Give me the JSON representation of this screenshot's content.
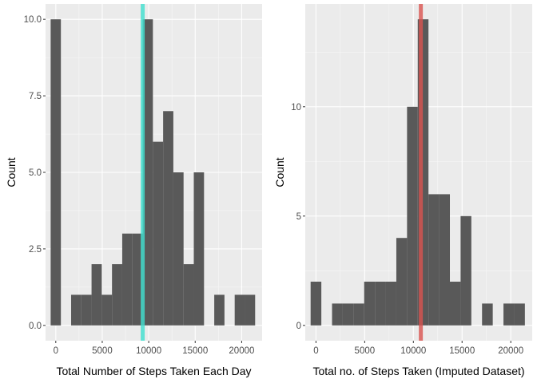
{
  "chart_data": [
    {
      "type": "bar",
      "subtype": "histogram",
      "xlabel": "Total Number of Steps Taken Each Day",
      "ylabel": "Count",
      "xlim": [
        -1100,
        22200
      ],
      "ylim": [
        -0.5,
        10.5
      ],
      "x_ticks": [
        0,
        5000,
        10000,
        15000,
        20000
      ],
      "x_tick_labels": [
        "0",
        "5000",
        "10000",
        "15000",
        "20000"
      ],
      "y_ticks": [
        0,
        2.5,
        5,
        7.5,
        10
      ],
      "y_tick_labels": [
        "0.0",
        "2.5",
        "5.0",
        "7.5",
        "10.0"
      ],
      "bin_width": 1100,
      "bins": [
        {
          "x": 0,
          "count": 10
        },
        {
          "x": 1100,
          "count": 0
        },
        {
          "x": 2200,
          "count": 1
        },
        {
          "x": 3300,
          "count": 1
        },
        {
          "x": 4400,
          "count": 2
        },
        {
          "x": 5500,
          "count": 1
        },
        {
          "x": 6600,
          "count": 2
        },
        {
          "x": 7700,
          "count": 3
        },
        {
          "x": 8800,
          "count": 3
        },
        {
          "x": 9900,
          "count": 10
        },
        {
          "x": 11000,
          "count": 6
        },
        {
          "x": 12100,
          "count": 7
        },
        {
          "x": 13200,
          "count": 5
        },
        {
          "x": 14300,
          "count": 2
        },
        {
          "x": 15400,
          "count": 5
        },
        {
          "x": 16500,
          "count": 0
        },
        {
          "x": 17600,
          "count": 1
        },
        {
          "x": 18700,
          "count": 0
        },
        {
          "x": 19800,
          "count": 1
        },
        {
          "x": 20900,
          "count": 1
        }
      ],
      "vline": {
        "x": 9354,
        "color": "#40e0d0"
      },
      "bar_color": "#595959",
      "panel_bg": "#ebebeb",
      "grid": true
    },
    {
      "type": "bar",
      "subtype": "histogram",
      "xlabel": "Total no. of Steps Taken (Imputed Dataset)",
      "ylabel": "Count",
      "xlim": [
        -1100,
        22200
      ],
      "ylim": [
        -0.7,
        14.7
      ],
      "x_ticks": [
        0,
        5000,
        10000,
        15000,
        20000
      ],
      "x_tick_labels": [
        "0",
        "5000",
        "10000",
        "15000",
        "20000"
      ],
      "y_ticks": [
        0,
        5,
        10
      ],
      "y_tick_labels": [
        "0",
        "5",
        "10"
      ],
      "bin_width": 1100,
      "bins": [
        {
          "x": 0,
          "count": 2
        },
        {
          "x": 1100,
          "count": 0
        },
        {
          "x": 2200,
          "count": 1
        },
        {
          "x": 3300,
          "count": 1
        },
        {
          "x": 4400,
          "count": 1
        },
        {
          "x": 5500,
          "count": 2
        },
        {
          "x": 6600,
          "count": 2
        },
        {
          "x": 7700,
          "count": 2
        },
        {
          "x": 8800,
          "count": 4
        },
        {
          "x": 9900,
          "count": 10
        },
        {
          "x": 11000,
          "count": 14
        },
        {
          "x": 12100,
          "count": 6
        },
        {
          "x": 13200,
          "count": 6
        },
        {
          "x": 14300,
          "count": 2
        },
        {
          "x": 15400,
          "count": 5
        },
        {
          "x": 16500,
          "count": 0
        },
        {
          "x": 17600,
          "count": 1
        },
        {
          "x": 18700,
          "count": 0
        },
        {
          "x": 19800,
          "count": 1
        },
        {
          "x": 20900,
          "count": 1
        }
      ],
      "vline": {
        "x": 10766,
        "color": "#d9534f"
      },
      "bar_color": "#595959",
      "panel_bg": "#ebebeb",
      "grid": true
    }
  ]
}
